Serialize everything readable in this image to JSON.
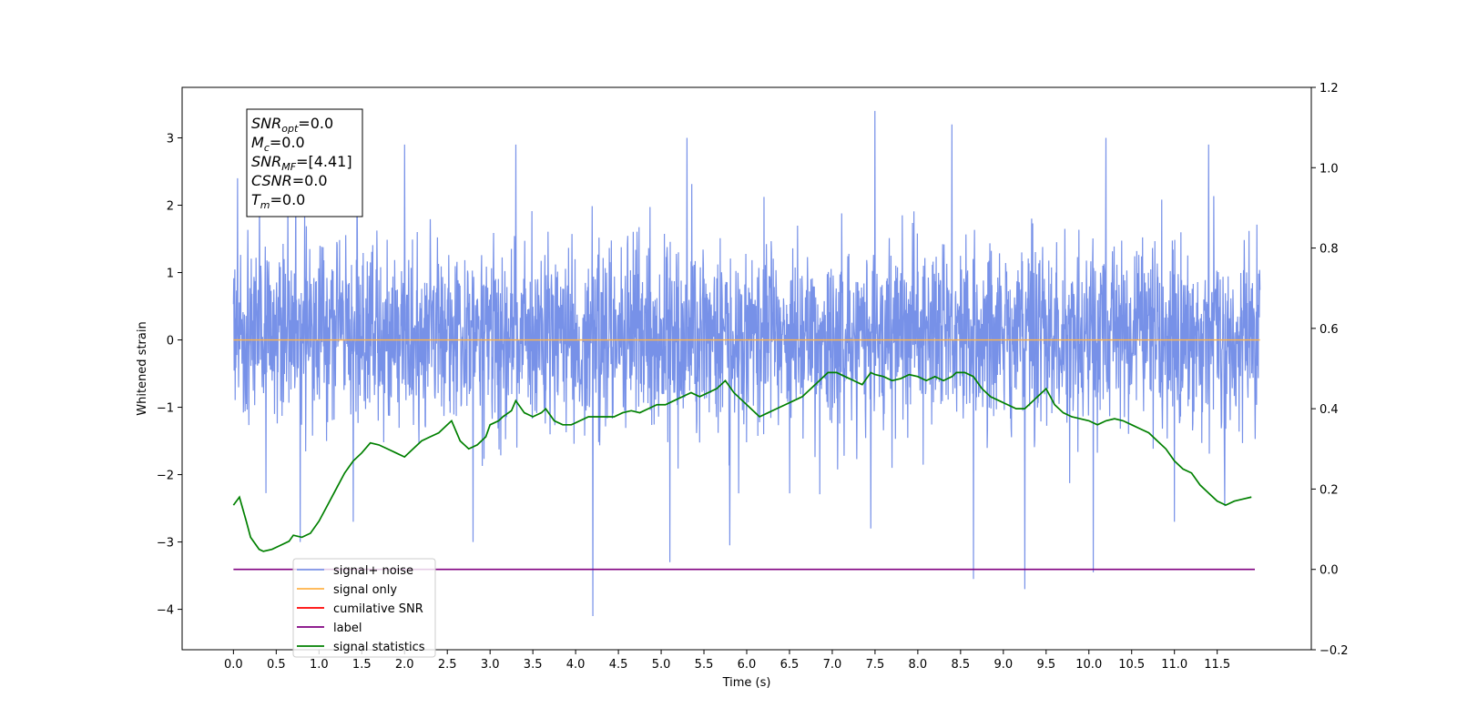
{
  "chart_data": {
    "type": "line",
    "title": "",
    "xlabel": "Time (s)",
    "ylabel": "Whitened strain",
    "y2label": "",
    "xlim": [
      -0.6,
      12.6
    ],
    "ylim": [
      -4.6,
      3.75
    ],
    "y2lim": [
      -0.2,
      1.2
    ],
    "x_ticks": [
      "0.0",
      "0.5",
      "1.0",
      "1.5",
      "2.0",
      "2.5",
      "3.0",
      "3.5",
      "4.0",
      "4.5",
      "5.0",
      "5.5",
      "6.0",
      "6.5",
      "7.0",
      "7.5",
      "8.0",
      "8.5",
      "9.0",
      "9.5",
      "10.0",
      "10.5",
      "11.0",
      "11.5"
    ],
    "y_ticks": [
      "3",
      "2",
      "1",
      "0",
      "−1",
      "−2",
      "−3",
      "−4"
    ],
    "y2_ticks": [
      "1.2",
      "1.0",
      "0.8",
      "0.6",
      "0.4",
      "0.2",
      "0.0",
      "−0.2"
    ],
    "grid": false,
    "legend_position": "lower-left",
    "series": [
      {
        "name": "signal+ noise",
        "color": "#6b88e6",
        "axis": "left",
        "x_range": [
          0.0,
          12.0
        ],
        "band": {
          "upper": 1.75,
          "lower": -1.6
        },
        "notable_peaks": [
          {
            "x": 0.05,
            "y": 2.4
          },
          {
            "x": 2.0,
            "y": 2.9
          },
          {
            "x": 3.3,
            "y": 2.9
          },
          {
            "x": 5.3,
            "y": 3.0
          },
          {
            "x": 7.5,
            "y": 3.4
          },
          {
            "x": 8.4,
            "y": 3.2
          },
          {
            "x": 10.2,
            "y": 3.0
          },
          {
            "x": 11.4,
            "y": 2.9
          }
        ],
        "notable_troughs": [
          {
            "x": 0.78,
            "y": -3.0
          },
          {
            "x": 1.4,
            "y": -2.7
          },
          {
            "x": 2.8,
            "y": -3.0
          },
          {
            "x": 4.2,
            "y": -4.1
          },
          {
            "x": 5.1,
            "y": -3.3
          },
          {
            "x": 5.8,
            "y": -3.05
          },
          {
            "x": 7.45,
            "y": -2.8
          },
          {
            "x": 8.65,
            "y": -3.55
          },
          {
            "x": 9.25,
            "y": -3.7
          },
          {
            "x": 10.05,
            "y": -3.45
          },
          {
            "x": 11.0,
            "y": -2.7
          }
        ]
      },
      {
        "name": "signal only",
        "color": "#ffb347",
        "axis": "left",
        "x": [
          0.0,
          12.0
        ],
        "y": [
          0.0,
          0.0
        ]
      },
      {
        "name": "cumilative SNR",
        "color": "#ff0000",
        "axis": "left",
        "x": [],
        "y": []
      },
      {
        "name": "label",
        "color": "#800080",
        "axis": "right",
        "x": [
          0.0,
          11.94
        ],
        "y": [
          0.0,
          0.0
        ]
      },
      {
        "name": "signal statistics",
        "color": "#008000",
        "axis": "right",
        "x": [
          0.0,
          0.07,
          0.15,
          0.2,
          0.3,
          0.35,
          0.45,
          0.55,
          0.65,
          0.7,
          0.8,
          0.9,
          1.0,
          1.1,
          1.2,
          1.3,
          1.4,
          1.5,
          1.6,
          1.7,
          1.8,
          1.9,
          2.0,
          2.1,
          2.2,
          2.3,
          2.4,
          2.5,
          2.55,
          2.65,
          2.75,
          2.85,
          2.95,
          3.0,
          3.1,
          3.15,
          3.25,
          3.3,
          3.4,
          3.5,
          3.6,
          3.65,
          3.75,
          3.85,
          3.95,
          4.05,
          4.15,
          4.25,
          4.35,
          4.45,
          4.55,
          4.65,
          4.75,
          4.85,
          4.95,
          5.05,
          5.15,
          5.25,
          5.35,
          5.45,
          5.55,
          5.65,
          5.75,
          5.85,
          5.95,
          6.05,
          6.15,
          6.25,
          6.35,
          6.45,
          6.55,
          6.65,
          6.75,
          6.85,
          6.95,
          7.05,
          7.15,
          7.25,
          7.35,
          7.45,
          7.5,
          7.6,
          7.7,
          7.8,
          7.9,
          8.0,
          8.1,
          8.2,
          8.3,
          8.4,
          8.45,
          8.55,
          8.65,
          8.75,
          8.85,
          8.95,
          9.05,
          9.15,
          9.25,
          9.35,
          9.45,
          9.5,
          9.6,
          9.7,
          9.8,
          9.9,
          10.0,
          10.1,
          10.2,
          10.3,
          10.4,
          10.5,
          10.6,
          10.7,
          10.8,
          10.9,
          11.0,
          11.1,
          11.2,
          11.3,
          11.4,
          11.5,
          11.6,
          11.7,
          11.8,
          11.9
        ],
        "y": [
          0.16,
          0.18,
          0.12,
          0.08,
          0.05,
          0.045,
          0.05,
          0.06,
          0.07,
          0.085,
          0.08,
          0.09,
          0.12,
          0.16,
          0.2,
          0.24,
          0.27,
          0.29,
          0.315,
          0.31,
          0.3,
          0.29,
          0.28,
          0.3,
          0.32,
          0.33,
          0.34,
          0.36,
          0.37,
          0.32,
          0.3,
          0.31,
          0.33,
          0.36,
          0.37,
          0.38,
          0.395,
          0.42,
          0.39,
          0.38,
          0.39,
          0.4,
          0.37,
          0.36,
          0.36,
          0.37,
          0.38,
          0.38,
          0.38,
          0.38,
          0.39,
          0.395,
          0.39,
          0.4,
          0.41,
          0.41,
          0.42,
          0.43,
          0.44,
          0.43,
          0.44,
          0.45,
          0.47,
          0.44,
          0.42,
          0.4,
          0.38,
          0.39,
          0.4,
          0.41,
          0.42,
          0.43,
          0.45,
          0.47,
          0.49,
          0.49,
          0.48,
          0.47,
          0.46,
          0.49,
          0.485,
          0.48,
          0.47,
          0.475,
          0.485,
          0.48,
          0.47,
          0.48,
          0.47,
          0.48,
          0.49,
          0.49,
          0.48,
          0.45,
          0.43,
          0.42,
          0.41,
          0.4,
          0.4,
          0.42,
          0.44,
          0.45,
          0.41,
          0.39,
          0.38,
          0.375,
          0.37,
          0.36,
          0.37,
          0.375,
          0.37,
          0.36,
          0.35,
          0.34,
          0.32,
          0.3,
          0.27,
          0.25,
          0.24,
          0.21,
          0.19,
          0.17,
          0.16,
          0.17,
          0.175,
          0.18
        ]
      }
    ],
    "annotation": {
      "lines": [
        {
          "sym": "SNR",
          "sub": "opt",
          "value": "=0.0"
        },
        {
          "sym": "M",
          "sub": "c",
          "value": "=0.0"
        },
        {
          "sym": "SNR",
          "sub": "MF",
          "value": "=[4.41]"
        },
        {
          "sym": "CSNR",
          "sub": "",
          "value": "=0.0"
        },
        {
          "sym": "T",
          "sub": "m",
          "value": "=0.0"
        }
      ]
    }
  }
}
